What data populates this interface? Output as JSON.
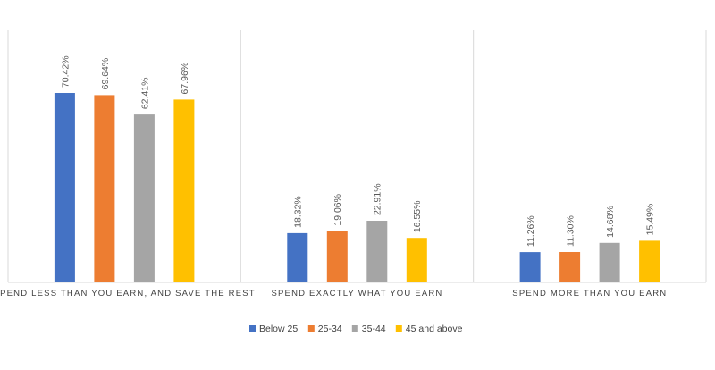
{
  "chart_data": {
    "type": "bar",
    "categories": [
      "SPEND LESS THAN YOU EARN, AND SAVE THE REST",
      "SPEND EXACTLY WHAT YOU EARN",
      "SPEND MORE THAN YOU EARN"
    ],
    "series": [
      {
        "name": "Below 25",
        "color": "#4472C4",
        "values": [
          70.42,
          18.32,
          11.26
        ],
        "labels": [
          "70.42%",
          "18.32%",
          "11.26%"
        ]
      },
      {
        "name": "25-34",
        "color": "#ED7D31",
        "values": [
          69.64,
          19.06,
          11.3
        ],
        "labels": [
          "69.64%",
          "19.06%",
          "11.30%"
        ]
      },
      {
        "name": "35-44",
        "color": "#A5A5A5",
        "values": [
          62.41,
          22.91,
          14.68
        ],
        "labels": [
          "62.41%",
          "22.91%",
          "14.68%"
        ]
      },
      {
        "name": "45 and above",
        "color": "#FFC000",
        "values": [
          67.96,
          16.55,
          15.49
        ],
        "labels": [
          "67.96%",
          "16.55%",
          "15.49%"
        ]
      }
    ],
    "ylim": [
      0,
      80
    ],
    "grid": false,
    "legend": "bottom",
    "data_labels": "rotated-vertical",
    "gridline_color": "#D9D9D9"
  }
}
